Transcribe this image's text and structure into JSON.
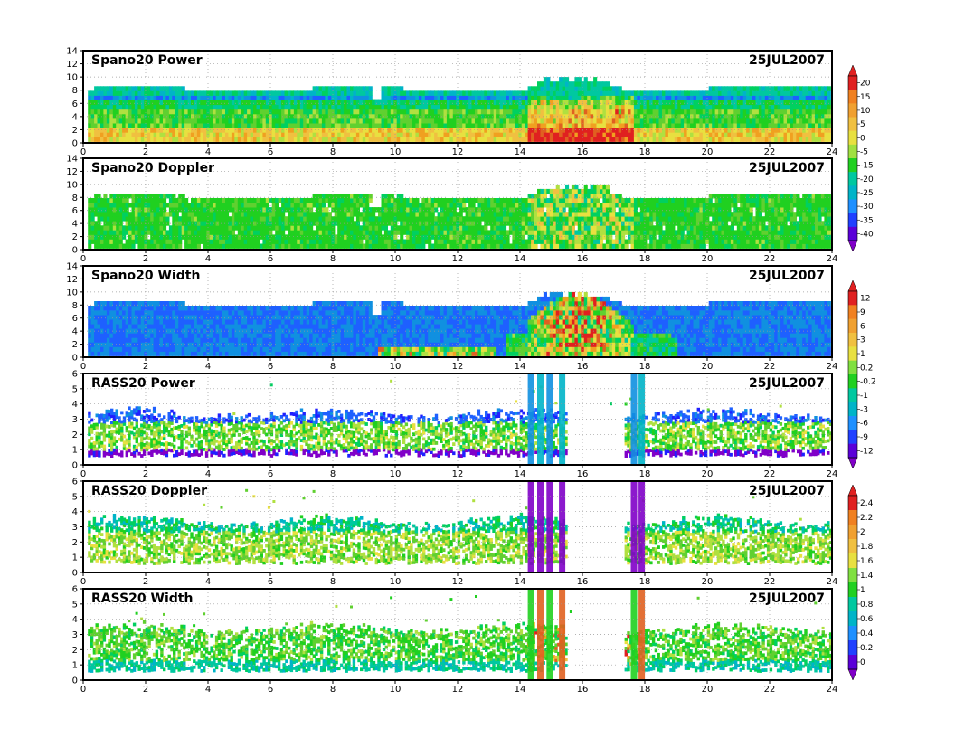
{
  "date_label": "25JUL2007",
  "palette": [
    "#8000c8",
    "#5a00d8",
    "#2020ff",
    "#1e60ff",
    "#1090e0",
    "#00b4c8",
    "#00c8a0",
    "#00d060",
    "#20d020",
    "#60d030",
    "#b0e040",
    "#e8e040",
    "#f0c040",
    "#f0a020",
    "#e06020",
    "#e02020"
  ],
  "chart_data": [
    {
      "type": "heatmap",
      "title": "Spano20  Power",
      "x_range": [
        0,
        24
      ],
      "x_ticks": [
        0,
        2,
        4,
        6,
        8,
        10,
        12,
        14,
        16,
        18,
        20,
        22,
        24
      ],
      "y_range": [
        0,
        14
      ],
      "y_ticks": [
        0,
        2,
        4,
        6,
        8,
        10,
        12,
        14
      ],
      "grid": true,
      "colorbar_labels": [
        "20",
        "15",
        "10",
        "5",
        "0",
        "-5",
        "-15",
        "-20",
        "-25",
        "-30",
        "-35",
        "-40"
      ],
      "colorbar_colors": [
        "#e02020",
        "#f08020",
        "#f0a030",
        "#f0c040",
        "#e8e040",
        "#a0e040",
        "#20d020",
        "#00c8a0",
        "#00b4c8",
        "#1e90ff",
        "#2040ff",
        "#5a00d8"
      ]
    },
    {
      "type": "heatmap",
      "title": "Spano20  Doppler",
      "x_range": [
        0,
        24
      ],
      "x_ticks": [
        0,
        2,
        4,
        6,
        8,
        10,
        12,
        14,
        16,
        18,
        20,
        22,
        24
      ],
      "y_range": [
        0,
        14
      ],
      "y_ticks": [
        0,
        2,
        4,
        6,
        8,
        10,
        12,
        14
      ],
      "grid": true
    },
    {
      "type": "heatmap",
      "title": "Spano20  Width",
      "x_range": [
        0,
        24
      ],
      "x_ticks": [
        0,
        2,
        4,
        6,
        8,
        10,
        12,
        14,
        16,
        18,
        20,
        22,
        24
      ],
      "y_range": [
        0,
        14
      ],
      "y_ticks": [
        0,
        2,
        4,
        6,
        8,
        10,
        12,
        14
      ],
      "grid": true,
      "colorbar_labels": [
        "12",
        "9",
        "6",
        "3",
        "1",
        "0.2",
        "-0.2",
        "-1",
        "-3",
        "-6",
        "-9",
        "-12"
      ],
      "colorbar_colors": [
        "#e02020",
        "#f08020",
        "#f0a030",
        "#f0c040",
        "#e8e040",
        "#80e040",
        "#20d020",
        "#00c8a0",
        "#00b4c8",
        "#1e90ff",
        "#2040ff",
        "#5a00d8"
      ]
    },
    {
      "type": "heatmap",
      "title": "RASS20  Power",
      "x_range": [
        0,
        24
      ],
      "x_ticks": [
        0,
        2,
        4,
        6,
        8,
        10,
        12,
        14,
        16,
        18,
        20,
        22,
        24
      ],
      "y_range": [
        0,
        6
      ],
      "y_ticks": [
        0,
        1,
        2,
        3,
        4,
        5,
        6
      ],
      "grid": true
    },
    {
      "type": "heatmap",
      "title": "RASS20  Doppler",
      "x_range": [
        0,
        24
      ],
      "x_ticks": [
        0,
        2,
        4,
        6,
        8,
        10,
        12,
        14,
        16,
        18,
        20,
        22,
        24
      ],
      "y_range": [
        0,
        6
      ],
      "y_ticks": [
        0,
        1,
        2,
        3,
        4,
        5,
        6
      ],
      "grid": true,
      "colorbar_labels": [
        "2.4",
        "2.2",
        "2",
        "1.8",
        "1.6",
        "1.4",
        "1",
        "0.8",
        "0.6",
        "0.4",
        "0.2",
        "0"
      ],
      "colorbar_colors": [
        "#e02020",
        "#f08020",
        "#f0a030",
        "#f0c040",
        "#e8e040",
        "#80e040",
        "#20d020",
        "#00c8a0",
        "#00b4c8",
        "#1e90ff",
        "#2040ff",
        "#5a00d8"
      ]
    },
    {
      "type": "heatmap",
      "title": "RASS20  Width",
      "x_range": [
        0,
        24
      ],
      "x_ticks": [
        0,
        2,
        4,
        6,
        8,
        10,
        12,
        14,
        16,
        18,
        20,
        22,
        24
      ],
      "y_range": [
        0,
        6
      ],
      "y_ticks": [
        0,
        1,
        2,
        3,
        4,
        5,
        6
      ],
      "grid": true
    }
  ]
}
